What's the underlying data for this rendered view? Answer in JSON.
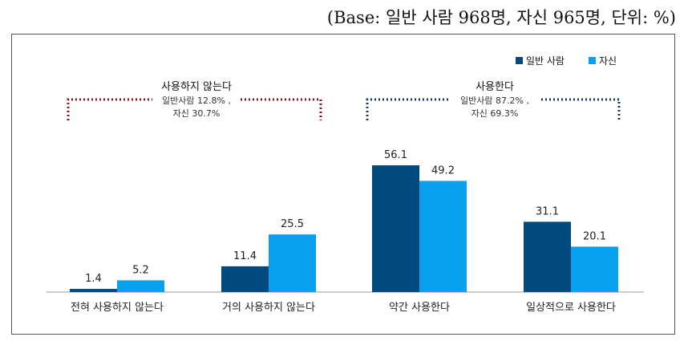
{
  "base_note": "(Base: 일반 사람 968명, 자신 965명, 단위: %)",
  "annotations": {
    "no_use": {
      "title": "사용하지 않는다",
      "line1": "일반사람 12.8% ,",
      "line2": "자신 30.7%"
    },
    "use": {
      "title": "사용한다",
      "line1": "일반사람 87.2% ,",
      "line2": "자신 69.3%"
    }
  },
  "colors": {
    "general": "#004a80",
    "self": "#0aa0f0",
    "no_use_bracket": "#8b1a1a",
    "use_bracket": "#1a3a6a"
  },
  "chart_data": {
    "type": "bar",
    "categories": [
      "전혀 사용하지 않는다",
      "거의 사용하지 않는다",
      "약간 사용한다",
      "일상적으로 사용한다"
    ],
    "series": [
      {
        "name": "일반 사람",
        "values": [
          1.4,
          11.4,
          56.1,
          31.1
        ],
        "labels": [
          "1.4",
          "11.4",
          "56.1",
          "31.1"
        ]
      },
      {
        "name": "자신",
        "values": [
          5.2,
          25.5,
          49.2,
          20.1
        ],
        "labels": [
          "5.2",
          "25.5",
          "49.2",
          "20.1"
        ]
      }
    ],
    "ylim": [
      0,
      60
    ],
    "legend": "top-right",
    "grid": false
  }
}
